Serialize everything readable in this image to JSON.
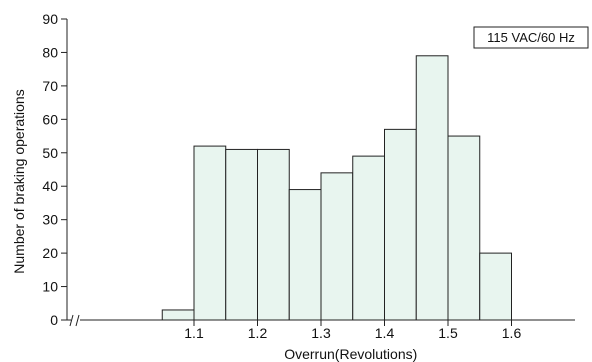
{
  "chart_data": {
    "type": "bar",
    "title": "",
    "xlabel": "Overrun(Revolutions)",
    "ylabel": "Number of braking operations",
    "annotation": "115 VAC/60 Hz",
    "bar_fill": "#e8f5ef",
    "bar_stroke": "#222222",
    "ylim": [
      0,
      90
    ],
    "yticks": [
      0,
      10,
      20,
      30,
      40,
      50,
      60,
      70,
      80,
      90
    ],
    "xlim": [
      0.9,
      1.7
    ],
    "xticks": [
      1.1,
      1.2,
      1.3,
      1.4,
      1.5,
      1.6
    ],
    "xtick_labels": [
      "1.1",
      "1.2",
      "1.3",
      "1.4",
      "1.5",
      "1.6"
    ],
    "bin_width": 0.05,
    "bins": [
      {
        "center": 1.075,
        "value": 3
      },
      {
        "center": 1.125,
        "value": 52
      },
      {
        "center": 1.175,
        "value": 51
      },
      {
        "center": 1.225,
        "value": 51
      },
      {
        "center": 1.275,
        "value": 39
      },
      {
        "center": 1.325,
        "value": 44
      },
      {
        "center": 1.375,
        "value": 49
      },
      {
        "center": 1.425,
        "value": 57
      },
      {
        "center": 1.475,
        "value": 79
      },
      {
        "center": 1.525,
        "value": 55
      },
      {
        "center": 1.575,
        "value": 20
      }
    ],
    "grid": false,
    "legend": "top-right"
  }
}
